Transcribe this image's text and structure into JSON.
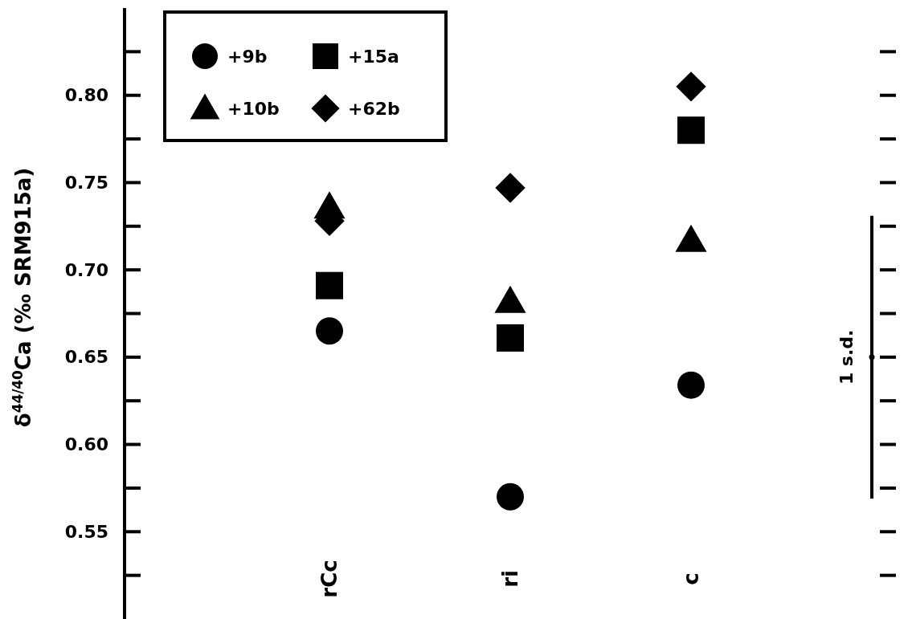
{
  "chart_data": {
    "type": "scatter",
    "ylabel": "δ$^{44/40}$Ca (‰ SRM915a)",
    "categories": [
      "rCc",
      "ri",
      "c",
      null
    ],
    "series": [
      {
        "name": "+9b",
        "color": "#000000",
        "marker": "circle",
        "values": [
          0.665,
          0.57,
          0.634,
          null
        ]
      },
      {
        "name": "+10b",
        "color": "#000000",
        "marker": "triangle",
        "values": [
          0.736,
          0.682,
          0.717,
          null
        ]
      },
      {
        "name": "+15a",
        "color": "#000000",
        "marker": "square",
        "values": [
          0.691,
          0.661,
          0.78,
          null
        ]
      },
      {
        "name": "+62b",
        "color": "#000000",
        "marker": "diamond",
        "values": [
          0.728,
          0.747,
          0.805,
          null
        ]
      },
      {
        "color": "#000000",
        "marker": "circle",
        "values": [
          null,
          null,
          null,
          0.65
        ],
        "errors": [
          null,
          null,
          null,
          0.081
        ]
      }
    ],
    "ylim": [
      0.5,
      0.85
    ],
    "yticks": [
      {
        "value": 0.55,
        "label": "0.55"
      },
      {
        "value": 0.6,
        "label": "0.60"
      },
      {
        "value": 0.65,
        "label": "0.65"
      },
      {
        "value": 0.7,
        "label": "0.70"
      },
      {
        "value": 0.75,
        "label": "0.75"
      },
      {
        "value": 0.8,
        "label": "0.80"
      }
    ],
    "annotations": [
      "1 s.d."
    ],
    "legend": "top left"
  }
}
